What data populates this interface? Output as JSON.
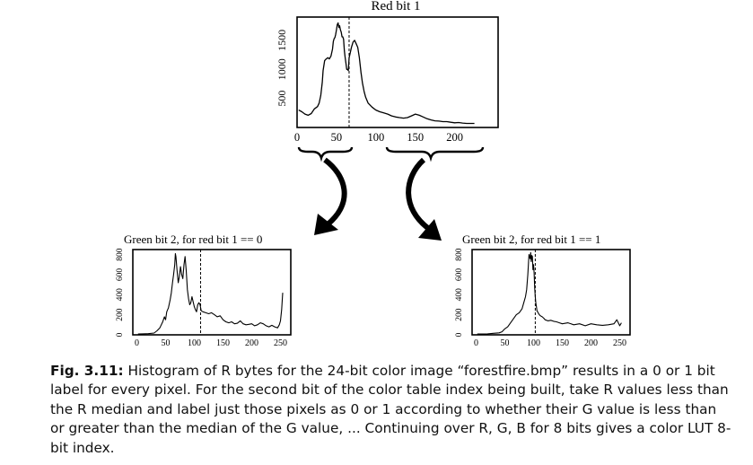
{
  "chart_data": [
    {
      "type": "line",
      "title": "Red bit 1",
      "xlabel": "",
      "ylabel": "",
      "xlim": [
        0,
        255
      ],
      "ylim": [
        0,
        1900
      ],
      "xticks": [
        0,
        50,
        100,
        150,
        200
      ],
      "yticks": [
        500,
        1000,
        1500
      ],
      "xtick_labels": [
        "0",
        "50",
        "100",
        "150",
        "200"
      ],
      "ytick_labels": [
        "500",
        "1000",
        "1500"
      ],
      "median_line_x": 66,
      "grid": false,
      "series": [
        {
          "x": [
            2,
            6,
            10,
            14,
            18,
            22,
            26,
            28,
            30,
            32,
            33,
            35,
            37,
            39,
            41,
            43,
            45,
            46,
            47,
            48,
            49,
            50,
            51,
            52,
            53,
            54,
            55,
            56,
            57,
            58,
            59,
            60,
            61,
            62,
            63,
            64,
            65,
            66,
            67,
            69,
            71,
            73,
            75,
            77,
            79,
            81,
            83,
            85,
            87,
            90,
            95,
            100,
            105,
            110,
            115,
            120,
            125,
            130,
            135,
            140,
            145,
            150,
            155,
            160,
            165,
            170,
            175,
            180,
            185,
            190,
            195,
            200,
            205,
            210,
            215,
            220,
            225
          ],
          "y": [
            300,
            270,
            230,
            210,
            240,
            320,
            360,
            420,
            550,
            780,
            980,
            1150,
            1180,
            1200,
            1180,
            1230,
            1350,
            1480,
            1530,
            1550,
            1600,
            1680,
            1770,
            1800,
            1720,
            1750,
            1680,
            1640,
            1560,
            1560,
            1520,
            1320,
            1200,
            1100,
            1000,
            1000,
            980,
            1200,
            1260,
            1380,
            1470,
            1500,
            1440,
            1380,
            1200,
            950,
            760,
            620,
            520,
            420,
            350,
            300,
            270,
            250,
            230,
            200,
            180,
            170,
            160,
            170,
            200,
            230,
            210,
            180,
            150,
            130,
            115,
            110,
            100,
            100,
            90,
            80,
            85,
            75,
            70,
            70,
            70
          ]
        }
      ]
    },
    {
      "type": "line",
      "title": "Green bit 2, for red bit 1 == 0",
      "xlabel": "",
      "ylabel": "",
      "xlim": [
        0,
        255
      ],
      "ylim": [
        0,
        850
      ],
      "xticks": [
        0,
        50,
        100,
        150,
        200,
        250
      ],
      "yticks": [
        0,
        200,
        400,
        600,
        800
      ],
      "xtick_labels": [
        "0",
        "50",
        "100",
        "150",
        "200",
        "250"
      ],
      "ytick_labels": [
        "0",
        "200",
        "400",
        "600",
        "800"
      ],
      "median_line_x": 111,
      "grid": false,
      "series": [
        {
          "x": [
            2,
            10,
            20,
            30,
            35,
            40,
            45,
            48,
            50,
            52,
            55,
            58,
            60,
            62,
            64,
            66,
            67,
            68,
            70,
            72,
            74,
            76,
            78,
            80,
            82,
            84,
            86,
            88,
            90,
            92,
            94,
            96,
            98,
            100,
            102,
            104,
            106,
            108,
            110,
            112,
            115,
            120,
            125,
            130,
            135,
            140,
            145,
            150,
            155,
            160,
            165,
            170,
            175,
            180,
            185,
            190,
            195,
            200,
            205,
            210,
            215,
            220,
            225,
            230,
            235,
            240,
            245,
            248,
            250,
            252,
            254
          ],
          "y": [
            8,
            10,
            12,
            18,
            40,
            70,
            130,
            180,
            150,
            230,
            270,
            350,
            420,
            520,
            600,
            700,
            810,
            780,
            640,
            520,
            580,
            680,
            600,
            560,
            700,
            780,
            640,
            450,
            360,
            300,
            320,
            380,
            330,
            280,
            250,
            230,
            300,
            320,
            300,
            240,
            230,
            220,
            210,
            220,
            200,
            180,
            190,
            150,
            130,
            120,
            130,
            110,
            115,
            140,
            110,
            100,
            105,
            110,
            90,
            100,
            120,
            110,
            90,
            80,
            95,
            80,
            70,
            100,
            140,
            250,
            420
          ]
        }
      ]
    },
    {
      "type": "line",
      "title": "Green bit 2, for red bit 1 == 1",
      "xlabel": "",
      "ylabel": "",
      "xlim": [
        0,
        255
      ],
      "ylim": [
        0,
        850
      ],
      "xticks": [
        0,
        50,
        100,
        150,
        200,
        250
      ],
      "yticks": [
        0,
        200,
        400,
        600,
        800
      ],
      "xtick_labels": [
        "0",
        "50",
        "100",
        "150",
        "200",
        "250"
      ],
      "ytick_labels": [
        "0",
        "200",
        "400",
        "600",
        "800"
      ],
      "median_line_x": 103,
      "grid": false,
      "series": [
        {
          "x": [
            2,
            10,
            20,
            30,
            40,
            45,
            50,
            55,
            60,
            65,
            70,
            75,
            80,
            83,
            86,
            88,
            90,
            92,
            94,
            95,
            96,
            97,
            98,
            99,
            100,
            101,
            102,
            103,
            104,
            105,
            106,
            108,
            110,
            112,
            115,
            118,
            120,
            125,
            130,
            135,
            140,
            145,
            150,
            160,
            170,
            180,
            190,
            200,
            210,
            220,
            230,
            240,
            245,
            250,
            253
          ],
          "y": [
            8,
            8,
            10,
            15,
            20,
            30,
            60,
            80,
            120,
            160,
            200,
            220,
            260,
            320,
            380,
            450,
            600,
            800,
            760,
            820,
            730,
            790,
            780,
            650,
            700,
            620,
            460,
            380,
            320,
            280,
            240,
            220,
            200,
            190,
            180,
            165,
            150,
            140,
            145,
            135,
            130,
            120,
            110,
            120,
            100,
            110,
            90,
            110,
            100,
            95,
            100,
            110,
            150,
            90,
            120
          ]
        }
      ]
    }
  ],
  "annotations": {
    "brace_left_range": "0-66",
    "brace_right_range": "66-225"
  },
  "caption": {
    "label": "Fig. 3.11:",
    "text": " Histogram of R bytes for the 24-bit color image “forestfire.bmp” results in a 0 or 1 bit label for every pixel. For the second bit of the color table index being built, take R values less than the R median and label just those pixels as 0 or 1 according to whether their G value is less than or greater than the median of the G value, ... Continuing over R, G, B for 8 bits gives a color LUT 8-bit index."
  }
}
